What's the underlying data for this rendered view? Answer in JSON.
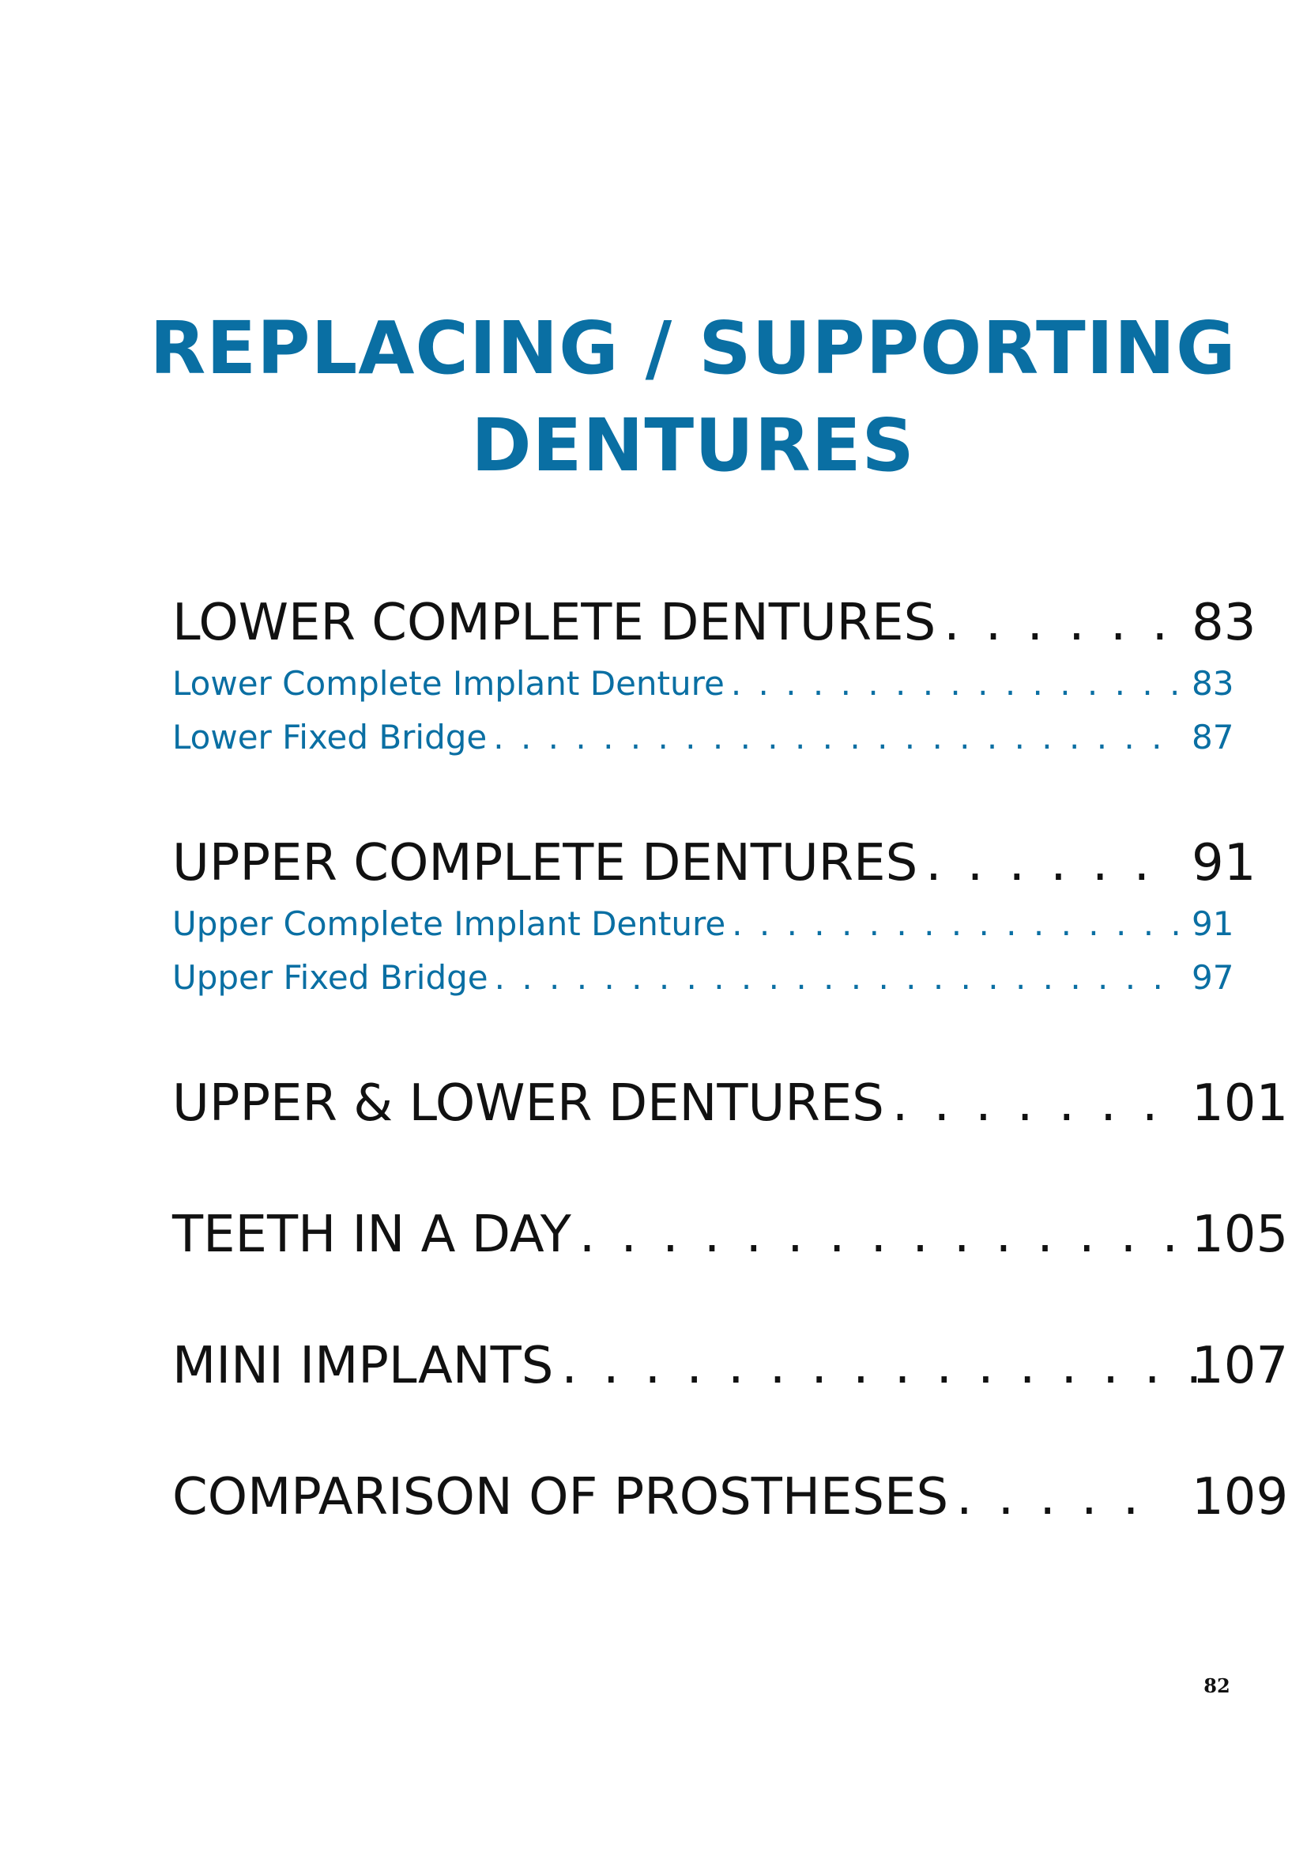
{
  "title": {
    "line1": "REPLACING / SUPPORTING",
    "line2": "DENTURES"
  },
  "toc": {
    "lower_complete": {
      "label": "LOWER COMPLETE DENTURES",
      "dots": ". . . . . .",
      "page": "83",
      "items": [
        {
          "label": "Lower Complete Implant Denture",
          "dots": ". . . . . . . . . . . . . . . . .",
          "page": "83"
        },
        {
          "label": "Lower Fixed Bridge",
          "dots": ". . . . . . . . . . . . . . . . . . . . . . . . .",
          "page": "87"
        }
      ]
    },
    "upper_complete": {
      "label": "UPPER COMPLETE DENTURES",
      "dots": ". . . . . .",
      "page": "91",
      "items": [
        {
          "label": "Upper Complete Implant Denture",
          "dots": ". . . . . . . . . . . . . . . . .",
          "page": "91"
        },
        {
          "label": "Upper Fixed Bridge",
          "dots": ". . . . . . . . . . . . . . . . . . . . . . . . .",
          "page": "97"
        }
      ]
    },
    "upper_lower": {
      "label": "UPPER & LOWER DENTURES",
      "dots": ". . . . . . .",
      "page": "101"
    },
    "teeth_day": {
      "label": "TEETH IN A DAY",
      "dots": ". . . . . . . . . . . . . . .",
      "page": "105"
    },
    "mini_implants": {
      "label": "MINI IMPLANTS",
      "dots": ". . . . . . . . . . . . . . . .",
      "page": "107"
    },
    "comparison": {
      "label": "COMPARISON OF PROSTHESES",
      "dots": ". . . . .",
      "page": "109"
    }
  },
  "footer": {
    "page_number": "82"
  },
  "colors": {
    "accent_blue": "#0a6fa3",
    "text_black": "#111111"
  }
}
